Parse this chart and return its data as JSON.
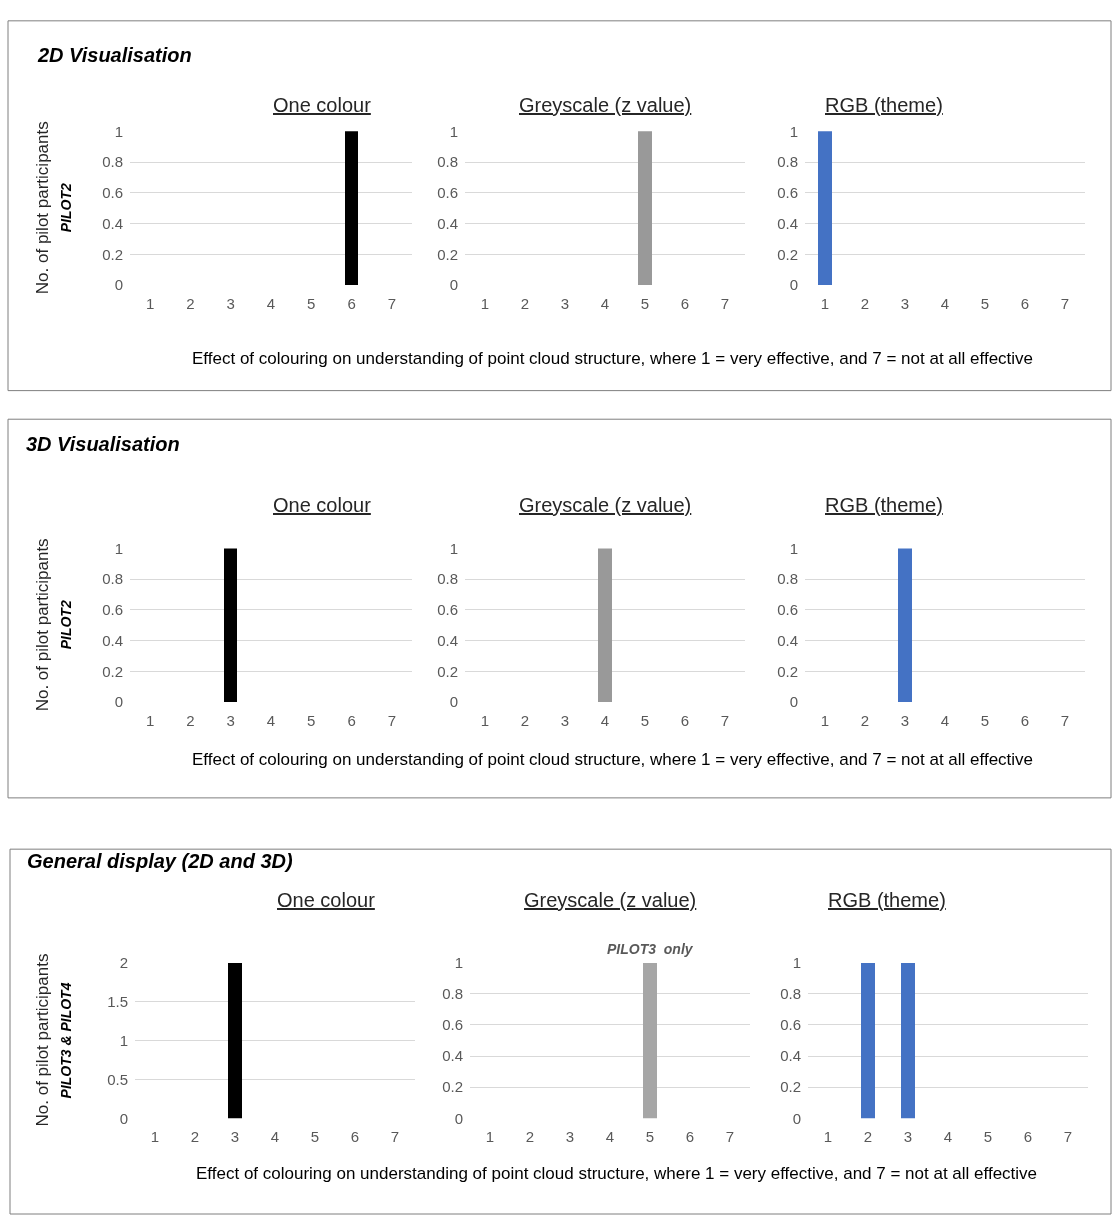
{
  "chart_data": [
    {
      "type": "bar",
      "subtitle": "2D Visualisation",
      "title": "One colour",
      "ylabel": "No. of pilot participants",
      "annotations": [
        "PILOT2"
      ],
      "categories": [
        "1",
        "2",
        "3",
        "4",
        "5",
        "6",
        "7"
      ],
      "values": [
        0,
        0,
        0,
        0,
        0,
        1,
        0
      ],
      "color": "#000000",
      "ylim": [
        0,
        1
      ],
      "yticks": [
        0,
        0.2,
        0.4,
        0.6,
        0.8,
        1
      ],
      "grid": "y"
    },
    {
      "type": "bar",
      "title": "Greyscale (z value)",
      "xlabel": "Effect of colouring on understanding of point cloud structure, where 1 = very effective, and 7 = not at all effective",
      "categories": [
        "1",
        "2",
        "3",
        "4",
        "5",
        "6",
        "7"
      ],
      "values": [
        0,
        0,
        0,
        0,
        1,
        0,
        0
      ],
      "color": "#999999",
      "ylim": [
        0,
        1
      ],
      "yticks": [
        0,
        0.2,
        0.4,
        0.6,
        0.8,
        1
      ],
      "grid": "y"
    },
    {
      "type": "bar",
      "title": "RGB (theme)",
      "categories": [
        "1",
        "2",
        "3",
        "4",
        "5",
        "6",
        "7"
      ],
      "values": [
        1,
        0,
        0,
        0,
        0,
        0,
        0
      ],
      "color": "#4472c4",
      "ylim": [
        0,
        1
      ],
      "yticks": [
        0,
        0.2,
        0.4,
        0.6,
        0.8,
        1
      ],
      "grid": "y"
    },
    {
      "type": "bar",
      "subtitle": "3D Visualisation",
      "title": "One colour",
      "ylabel": "No. of pilot participants",
      "annotations": [
        "PILOT2"
      ],
      "categories": [
        "1",
        "2",
        "3",
        "4",
        "5",
        "6",
        "7"
      ],
      "values": [
        0,
        0,
        1,
        0,
        0,
        0,
        0
      ],
      "color": "#000000",
      "ylim": [
        0,
        1
      ],
      "yticks": [
        0,
        0.2,
        0.4,
        0.6,
        0.8,
        1
      ],
      "grid": "y"
    },
    {
      "type": "bar",
      "title": "Greyscale (z value)",
      "xlabel": "Effect of colouring on understanding of point cloud structure, where 1 = very effective, and 7 = not at all effective",
      "categories": [
        "1",
        "2",
        "3",
        "4",
        "5",
        "6",
        "7"
      ],
      "values": [
        0,
        0,
        0,
        1,
        0,
        0,
        0
      ],
      "color": "#999999",
      "ylim": [
        0,
        1
      ],
      "yticks": [
        0,
        0.2,
        0.4,
        0.6,
        0.8,
        1
      ],
      "grid": "y"
    },
    {
      "type": "bar",
      "title": "RGB (theme)",
      "categories": [
        "1",
        "2",
        "3",
        "4",
        "5",
        "6",
        "7"
      ],
      "values": [
        0,
        0,
        1,
        0,
        0,
        0,
        0
      ],
      "color": "#4472c4",
      "ylim": [
        0,
        1
      ],
      "yticks": [
        0,
        0.2,
        0.4,
        0.6,
        0.8,
        1
      ],
      "grid": "y"
    },
    {
      "type": "bar",
      "subtitle": "General display (2D and 3D)",
      "title": "One colour",
      "ylabel": "No. of pilot participants",
      "annotations": [
        "PILOT3 & PILOT4"
      ],
      "categories": [
        "1",
        "2",
        "3",
        "4",
        "5",
        "6",
        "7"
      ],
      "values": [
        0,
        0,
        2,
        0,
        0,
        0,
        0
      ],
      "color": "#000000",
      "ylim": [
        0,
        2
      ],
      "yticks": [
        0,
        0.5,
        1,
        1.5,
        2
      ],
      "grid": "y"
    },
    {
      "type": "bar",
      "title": "Greyscale (z value)",
      "xlabel": "Effect of colouring on understanding of point cloud structure, where 1 = very effective, and 7 = not at all effective",
      "annotations": [
        {
          "text": "PILOT3  only",
          "x": "5",
          "y": 1
        }
      ],
      "categories": [
        "1",
        "2",
        "3",
        "4",
        "5",
        "6",
        "7"
      ],
      "values": [
        0,
        0,
        0,
        0,
        1,
        0,
        0
      ],
      "color": "#a6a6a6",
      "ylim": [
        0,
        1
      ],
      "yticks": [
        0,
        0.2,
        0.4,
        0.6,
        0.8,
        1
      ],
      "grid": "y"
    },
    {
      "type": "bar",
      "title": "RGB (theme)",
      "categories": [
        "1",
        "2",
        "3",
        "4",
        "5",
        "6",
        "7"
      ],
      "values": [
        0,
        1,
        1,
        0,
        0,
        0,
        0
      ],
      "color": "#4472c4",
      "ylim": [
        0,
        1
      ],
      "yticks": [
        0,
        0.2,
        0.4,
        0.6,
        0.8,
        1
      ],
      "grid": "y"
    }
  ]
}
